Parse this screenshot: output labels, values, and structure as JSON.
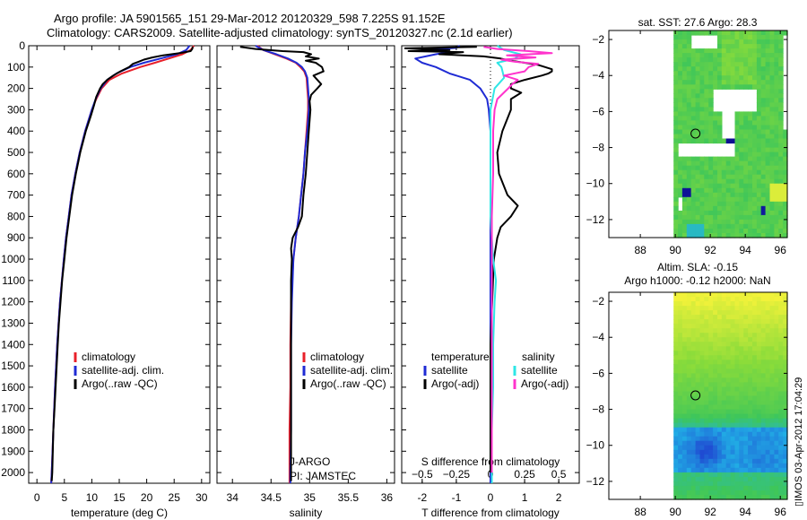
{
  "header": {
    "title_line1": "Argo profile: JA 5901565_151 29-Mar-2012 20120329_598 7.225S 91.152E",
    "title_line2": "Climatology: CARS2009. Satellite-adjusted climatology: synTS_20120327.nc (2.1d earlier)"
  },
  "colors": {
    "climatology": "#e8202a",
    "satellite": "#1f2bd4",
    "argo": "#000000",
    "satellite_s": "#2ee6e6",
    "argo_s": "#ff33cc"
  },
  "chart_data": [
    {
      "id": "temperature",
      "type": "line",
      "xlabel": "temperature (deg C)",
      "ylabel": "",
      "xlim": [
        -1.5,
        31.5
      ],
      "ylim": [
        2050,
        0
      ],
      "xticks": [
        0,
        5,
        10,
        15,
        20,
        25,
        30
      ],
      "yticks": [
        0,
        100,
        200,
        300,
        400,
        500,
        600,
        700,
        800,
        900,
        1000,
        1100,
        1200,
        1300,
        1400,
        1500,
        1600,
        1700,
        1800,
        1900,
        2000
      ],
      "legend": [
        "climatology",
        "satellite-adj. clim.",
        "Argo(..raw -QC)"
      ],
      "series": [
        {
          "name": "climatology",
          "color": "#e8202a",
          "depth": [
            0,
            20,
            40,
            60,
            80,
            100,
            130,
            160,
            200,
            250,
            300,
            400,
            500,
            600,
            700,
            800,
            900,
            1000,
            1200,
            1400,
            1600,
            1800,
            2000,
            2050
          ],
          "values": [
            28.6,
            28.0,
            26.5,
            24.0,
            21.5,
            18.8,
            15.5,
            13.2,
            11.8,
            10.8,
            10.0,
            8.8,
            7.8,
            7.0,
            6.3,
            5.8,
            5.3,
            4.9,
            4.2,
            3.7,
            3.3,
            3.0,
            2.7,
            2.6
          ]
        },
        {
          "name": "satellite-adj. clim.",
          "color": "#1f2bd4",
          "depth": [
            0,
            20,
            40,
            60,
            80,
            100,
            130,
            160,
            200,
            250,
            300,
            400,
            500,
            600,
            700,
            800,
            900,
            1000,
            1200,
            1400,
            1600,
            1800,
            2000,
            2050
          ],
          "values": [
            27.8,
            27.2,
            25.5,
            22.5,
            19.5,
            17.0,
            14.5,
            12.8,
            11.6,
            10.7,
            10.0,
            8.8,
            7.8,
            7.0,
            6.3,
            5.8,
            5.3,
            4.9,
            4.2,
            3.7,
            3.3,
            3.0,
            2.7,
            2.6
          ]
        },
        {
          "name": "Argo(..raw -QC)",
          "color": "#000000",
          "depth": [
            5,
            15,
            25,
            35,
            45,
            55,
            65,
            75,
            85,
            100,
            120,
            140,
            160,
            180,
            200,
            240,
            280,
            330,
            400,
            500,
            600,
            700,
            800,
            900,
            1000,
            1100,
            1200,
            1300,
            1400,
            1500,
            1600,
            1700,
            1800,
            1900,
            2000,
            2040
          ],
          "values": [
            28.4,
            28.3,
            28.0,
            26.0,
            23.0,
            21.0,
            19.5,
            18.5,
            17.5,
            16.8,
            15.2,
            13.9,
            12.8,
            12.0,
            11.5,
            10.8,
            10.4,
            9.8,
            8.9,
            7.9,
            7.1,
            6.4,
            5.9,
            5.4,
            5.0,
            4.6,
            4.3,
            4.0,
            3.8,
            3.6,
            3.4,
            3.2,
            3.0,
            2.9,
            2.8,
            2.7
          ]
        }
      ]
    },
    {
      "id": "salinity",
      "type": "line",
      "xlabel": "salinity",
      "xlim": [
        33.8,
        36.1
      ],
      "ylim": [
        2050,
        0
      ],
      "xticks": [
        34,
        34.5,
        35,
        35.5,
        36
      ],
      "legend": [
        "climatology",
        "satellite-adj. clim.",
        "Argo(..raw -QC)"
      ],
      "annotations": [
        "J-ARGO",
        "PI: JAMSTEC"
      ],
      "series": [
        {
          "name": "climatology",
          "color": "#e8202a",
          "depth": [
            0,
            20,
            40,
            60,
            80,
            100,
            120,
            150,
            200,
            250,
            300,
            400,
            500,
            600,
            700,
            800,
            900,
            1000,
            1200,
            1400,
            1600,
            1800,
            2000,
            2050
          ],
          "values": [
            34.32,
            34.4,
            34.55,
            34.7,
            34.82,
            34.88,
            34.93,
            34.96,
            34.97,
            34.98,
            34.98,
            34.96,
            34.94,
            34.92,
            34.89,
            34.86,
            34.82,
            34.79,
            34.76,
            34.75,
            34.75,
            34.74,
            34.74,
            34.74
          ]
        },
        {
          "name": "satellite-adj. clim.",
          "color": "#1f2bd4",
          "depth": [
            0,
            20,
            40,
            60,
            80,
            100,
            120,
            150,
            200,
            250,
            300,
            400,
            500,
            600,
            700,
            800,
            900,
            1000,
            1200,
            1400,
            1600,
            1800,
            2000,
            2050
          ],
          "values": [
            34.3,
            34.4,
            34.57,
            34.72,
            34.83,
            34.9,
            34.94,
            34.97,
            34.98,
            34.99,
            34.99,
            34.97,
            34.94,
            34.92,
            34.89,
            34.86,
            34.82,
            34.79,
            34.77,
            34.76,
            34.76,
            34.76,
            34.75,
            34.75
          ]
        },
        {
          "name": "Argo(..raw -QC)",
          "color": "#000000",
          "depth": [
            5,
            15,
            25,
            30,
            40,
            50,
            60,
            70,
            80,
            100,
            120,
            140,
            160,
            180,
            200,
            230,
            260,
            300,
            400,
            500,
            600,
            700,
            800,
            850,
            900,
            950,
            1000,
            1100,
            1200,
            1300,
            1400,
            1500,
            1600,
            1700,
            1800,
            1900,
            2000,
            2040
          ],
          "values": [
            34.1,
            34.3,
            34.65,
            34.92,
            35.02,
            34.95,
            35.12,
            34.95,
            35.08,
            35.16,
            35.18,
            35.05,
            35.1,
            35.15,
            35.1,
            35.02,
            35.0,
            35.01,
            34.99,
            34.97,
            34.95,
            34.92,
            34.9,
            34.85,
            34.78,
            34.76,
            34.77,
            34.76,
            34.76,
            34.76,
            34.76,
            34.76,
            34.76,
            34.76,
            34.76,
            34.76,
            34.76,
            34.76
          ]
        }
      ]
    },
    {
      "id": "difference",
      "type": "line",
      "xlabel": "T difference from climatology",
      "xlabel_top": "S difference from climatology",
      "xlim": [
        -2.6,
        2.6
      ],
      "ylim": [
        2050,
        0
      ],
      "xticks": [
        -2,
        -1,
        0,
        1,
        2
      ],
      "xticks_s": [
        -0.5,
        -0.25,
        0,
        0.25,
        0.5
      ],
      "xticks_s_labels": [
        "−0.5",
        "−0.25",
        "0",
        "0.25",
        "0.5"
      ],
      "legend": {
        "temperature_heading": "temperature",
        "salinity_heading": "salinity",
        "satellite": "satellite",
        "argo": "Argo(-adj)"
      },
      "series": [
        {
          "name": "temperature satellite",
          "color": "#1f2bd4",
          "depth": [
            0,
            10,
            20,
            30,
            40,
            50,
            60,
            70,
            80,
            90,
            100,
            130,
            160,
            200,
            250,
            300,
            400,
            500,
            600,
            800,
            1000,
            1200,
            1400,
            1600,
            1800,
            2000,
            2050
          ],
          "values": [
            -0.9,
            -1.0,
            -2.0,
            -1.2,
            -1.6,
            -1.9,
            -2.2,
            -2.1,
            -2.0,
            -1.8,
            -1.6,
            -1.2,
            -0.6,
            -0.3,
            -0.1,
            -0.05,
            0.0,
            0.0,
            0.0,
            0.0,
            0.0,
            0.0,
            0.0,
            0.0,
            0.0,
            0.0,
            0.0
          ]
        },
        {
          "name": "temperature Argo",
          "color": "#000000",
          "depth": [
            5,
            12,
            20,
            25,
            30,
            40,
            50,
            60,
            70,
            80,
            90,
            100,
            110,
            120,
            130,
            140,
            160,
            180,
            200,
            220,
            250,
            300,
            400,
            500,
            600,
            700,
            750,
            800,
            850,
            900,
            1000,
            1200,
            1400,
            1600,
            1800,
            2000
          ],
          "values": [
            -0.4,
            -2.5,
            -1.2,
            -2.4,
            -0.8,
            -1.5,
            -0.2,
            0.3,
            0.6,
            1.0,
            1.4,
            1.6,
            1.8,
            1.8,
            1.7,
            1.5,
            1.0,
            0.6,
            0.6,
            0.9,
            0.6,
            0.6,
            0.35,
            0.2,
            0.25,
            0.5,
            0.8,
            0.6,
            0.3,
            0.2,
            0.1,
            0.05,
            0.0,
            0.0,
            0.0,
            0.0
          ]
        },
        {
          "name": "salinity satellite",
          "color": "#2ee6e6",
          "depth": [
            0,
            20,
            40,
            60,
            80,
            100,
            150,
            200,
            300,
            400,
            600,
            800,
            1000,
            1100,
            1200,
            1400,
            1600,
            1800,
            2000,
            2050
          ],
          "values": [
            0.05,
            0.1,
            0.22,
            0.18,
            0.05,
            0.08,
            0.1,
            0.03,
            0.0,
            0.0,
            0.0,
            0.0,
            0.02,
            0.04,
            0.03,
            0.02,
            0.02,
            0.01,
            0.01,
            0.01
          ]
        },
        {
          "name": "salinity Argo",
          "color": "#ff33cc",
          "depth": [
            5,
            15,
            25,
            35,
            45,
            55,
            65,
            75,
            85,
            100,
            120,
            140,
            160,
            180,
            200,
            250,
            300,
            400,
            500,
            600,
            800,
            1000,
            1200,
            1400,
            1600,
            1800,
            2000
          ],
          "values": [
            -0.05,
            0.05,
            0.28,
            0.45,
            0.12,
            0.33,
            0.08,
            0.18,
            0.35,
            0.28,
            0.25,
            0.1,
            0.2,
            0.16,
            0.13,
            0.05,
            0.03,
            0.02,
            0.02,
            0.02,
            0.01,
            0.01,
            0.01,
            0.01,
            0.01,
            0.01,
            0.01
          ]
        }
      ]
    },
    {
      "id": "sst_map",
      "type": "heatmap",
      "title": "sat. SST: 27.6 Argo: 28.3",
      "xlim": [
        86.2,
        96.4
      ],
      "ylim": [
        -13.0,
        -1.5
      ],
      "xticks": [
        88,
        90,
        92,
        94,
        96
      ],
      "yticks": [
        -2,
        -4,
        -6,
        -8,
        -10,
        -12
      ],
      "marker": {
        "lon": 91.152,
        "lat": -7.225
      },
      "data_lon_range": [
        89.9,
        96.4
      ]
    },
    {
      "id": "sla_map",
      "type": "heatmap",
      "title_line1": "Altim. SLA: -0.15",
      "title_line2": "Argo h1000: -0.12 h2000: NaN",
      "xlim": [
        86.2,
        96.4
      ],
      "ylim": [
        -13.0,
        -1.5
      ],
      "xticks": [
        88,
        90,
        92,
        94,
        96
      ],
      "yticks": [
        -2,
        -4,
        -6,
        -8,
        -10,
        -12
      ],
      "marker": {
        "lon": 91.152,
        "lat": -7.225
      },
      "data_lon_range": [
        89.9,
        96.4
      ]
    }
  ],
  "side_label": "▯IMOS 03-Apr-2012 17:04:29"
}
